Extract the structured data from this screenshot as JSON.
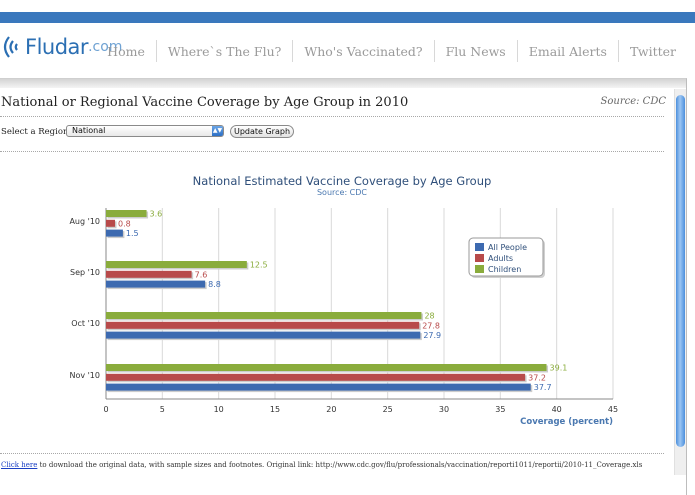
{
  "site": {
    "logo_name": "Fludar",
    "logo_suffix": ".com",
    "nav": [
      "Home",
      "Where`s The Flu?",
      "Who's Vaccinated?",
      "Flu News",
      "Email Alerts",
      "Twitter"
    ]
  },
  "page": {
    "title": "National or Regional Vaccine Coverage by Age Group in 2010",
    "source": "Source: CDC",
    "region_label": "Select a Region:",
    "region_selected": "National",
    "update_button": "Update Graph",
    "footnote_link": "Click here",
    "footnote_text": " to download the original data, with sample sizes and footnotes. Original link: http://www.cdc.gov/flu/professionals/vaccination/reporti1011/reportii/2010-11_Coverage.xls"
  },
  "colors": {
    "all_people": "#3d6ab0",
    "adults": "#b84a4a",
    "children": "#8aac3c",
    "accent": "#3a78bd"
  },
  "chart_data": {
    "type": "bar",
    "orientation": "horizontal",
    "title": "National Estimated Vaccine Coverage by Age Group",
    "subtitle": "Source: CDC",
    "xlabel": "Coverage (percent)",
    "ylabel": "",
    "categories": [
      "Aug '10",
      "Sep '10",
      "Oct '10",
      "Nov '10"
    ],
    "series": [
      {
        "name": "All People",
        "values": [
          1.5,
          8.8,
          27.9,
          37.7
        ]
      },
      {
        "name": "Adults",
        "values": [
          0.8,
          7.6,
          27.8,
          37.2
        ]
      },
      {
        "name": "Children",
        "values": [
          3.6,
          12.5,
          28,
          39.1
        ]
      }
    ],
    "xlim": [
      0,
      45
    ],
    "xticks": [
      0,
      5,
      10,
      15,
      20,
      25,
      30,
      35,
      40,
      45
    ],
    "grid": true,
    "legend": "right"
  }
}
